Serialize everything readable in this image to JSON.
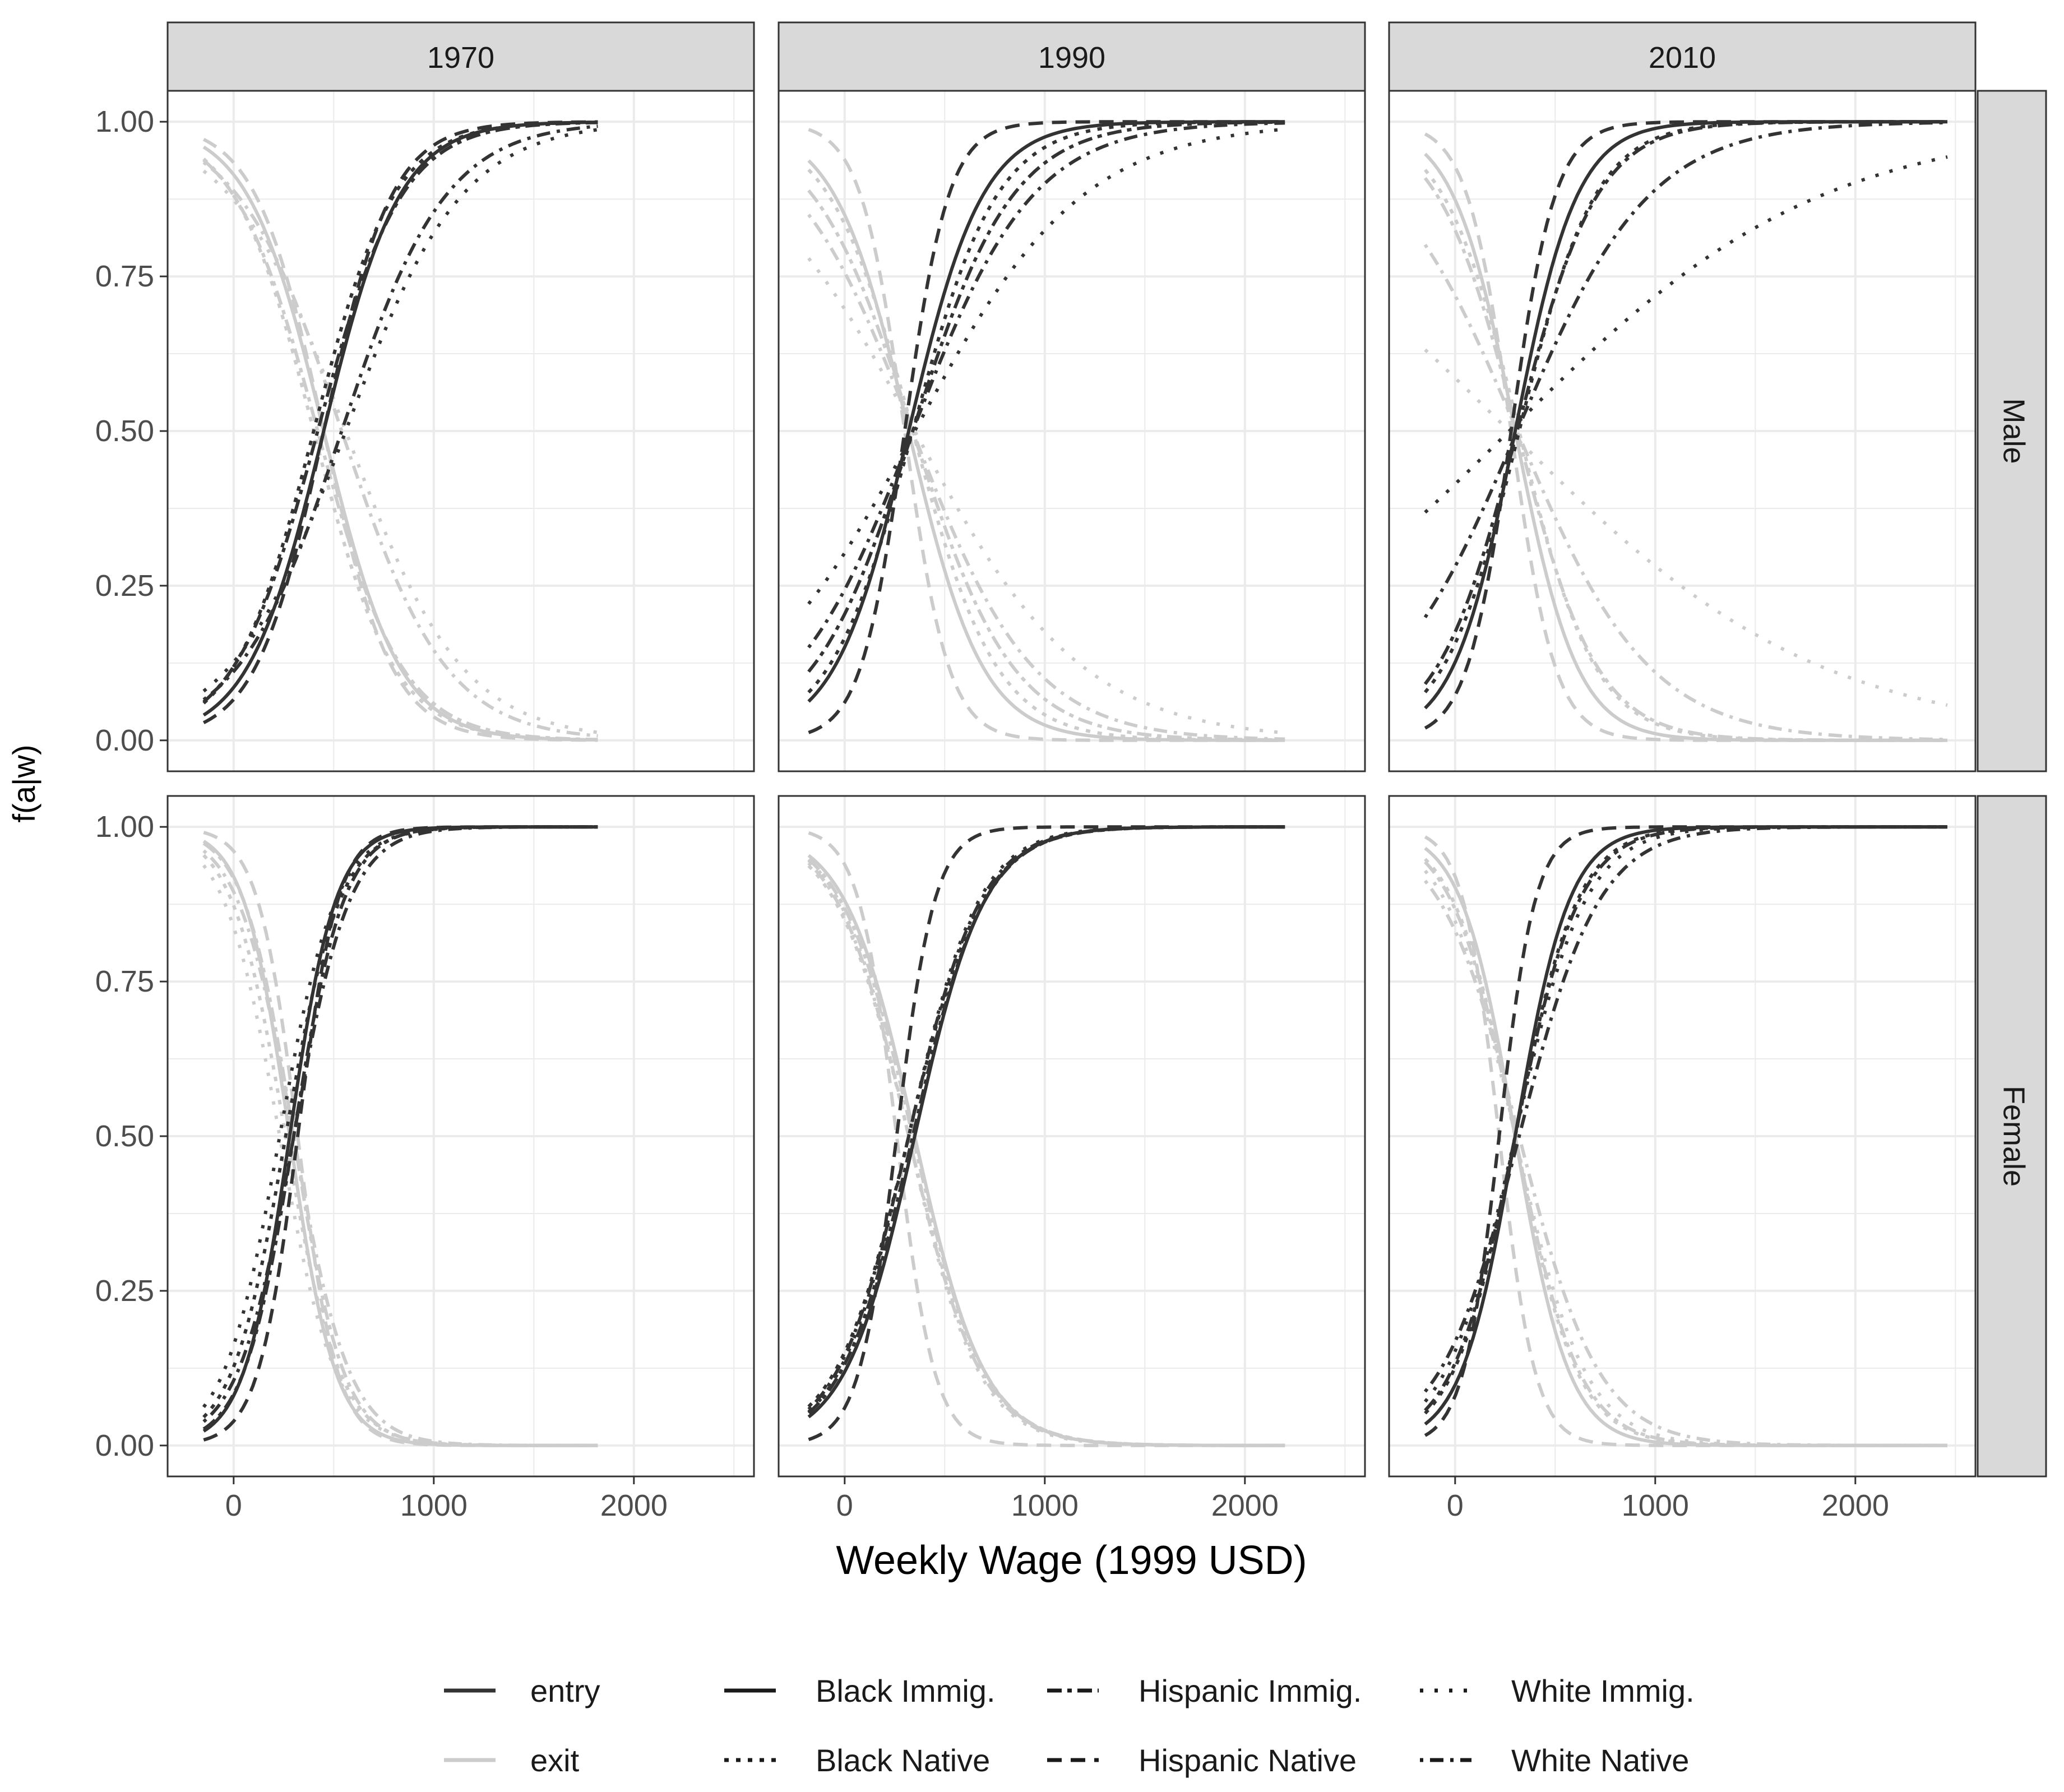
{
  "chart_data": {
    "type": "line",
    "layout": "facet_grid",
    "xlabel": "Weekly Wage (1999 USD)",
    "ylabel": "f(a|w)",
    "xlim": [
      -330,
      2600
    ],
    "ylim": [
      -0.05,
      1.05
    ],
    "x_ticks": [
      0,
      1000,
      2000
    ],
    "x_tick_labels": [
      "0",
      "1000",
      "2000"
    ],
    "y_ticks": [
      0,
      0.25,
      0.5,
      0.75,
      1.0
    ],
    "y_tick_labels": [
      "0.00",
      "0.25",
      "0.50",
      "0.75",
      "1.00"
    ],
    "x_minor": [
      -500,
      500,
      1500,
      2500
    ],
    "y_minor": [
      0.125,
      0.375,
      0.625,
      0.875
    ],
    "columns": [
      "1970",
      "1990",
      "2010"
    ],
    "rows": [
      "Male",
      "Female"
    ],
    "legend": {
      "position": "bottom",
      "color_entries": [
        {
          "label": "entry",
          "color": "#333333"
        },
        {
          "label": "exit",
          "color": "#cccccc"
        }
      ],
      "linetype_entries": [
        {
          "label": "Black Immig.",
          "dash": "solid"
        },
        {
          "label": "Black Native",
          "dash": "dotted"
        },
        {
          "label": "Hispanic Immig.",
          "dash": "dashdot"
        },
        {
          "label": "Hispanic Native",
          "dash": "dashed"
        },
        {
          "label": "White Immig.",
          "dash": "dotted-sparse"
        },
        {
          "label": "White Native",
          "dash": "dotdash"
        }
      ]
    },
    "colors": {
      "entry": "#333333",
      "exit": "#cccccc",
      "strip": "#d9d9d9",
      "grid": "#ebebeb",
      "frame": "#333333"
    },
    "x_extent_by_year": {
      "1970": [
        -150,
        1820
      ],
      "1990": [
        -180,
        2200
      ],
      "2010": [
        -150,
        2460
      ]
    },
    "series_model": "logistic: entry = 1/(1+exp(-(w-mid)/scale)); exit = 1 - entry",
    "panels": [
      {
        "column": "1970",
        "row": "Male",
        "series": [
          {
            "group": "Black Immig.",
            "mid": 450,
            "scale": 190
          },
          {
            "group": "Black Native",
            "mid": 400,
            "scale": 200
          },
          {
            "group": "Hispanic Immig.",
            "mid": 420,
            "scale": 210
          },
          {
            "group": "Hispanic Native",
            "mid": 450,
            "scale": 170
          },
          {
            "group": "White Immig.",
            "mid": 560,
            "scale": 290
          },
          {
            "group": "White Native",
            "mid": 540,
            "scale": 260
          }
        ]
      },
      {
        "column": "1990",
        "row": "Male",
        "series": [
          {
            "group": "Black Immig.",
            "mid": 320,
            "scale": 185
          },
          {
            "group": "Black Native",
            "mid": 340,
            "scale": 210
          },
          {
            "group": "Hispanic Immig.",
            "mid": 340,
            "scale": 250
          },
          {
            "group": "Hispanic Native",
            "mid": 300,
            "scale": 110
          },
          {
            "group": "White Immig.",
            "mid": 350,
            "scale": 420
          },
          {
            "group": "White Native",
            "mid": 340,
            "scale": 300
          }
        ]
      },
      {
        "column": "2010",
        "row": "Male",
        "series": [
          {
            "group": "Black Immig.",
            "mid": 300,
            "scale": 155
          },
          {
            "group": "Black Native",
            "mid": 320,
            "scale": 190
          },
          {
            "group": "Hispanic Immig.",
            "mid": 310,
            "scale": 200
          },
          {
            "group": "Hispanic Native",
            "mid": 280,
            "scale": 110
          },
          {
            "group": "White Immig.",
            "mid": 270,
            "scale": 780
          },
          {
            "group": "White Native",
            "mid": 310,
            "scale": 330
          }
        ]
      },
      {
        "column": "1970",
        "row": "Female",
        "series": [
          {
            "group": "Black Immig.",
            "mid": 280,
            "scale": 115
          },
          {
            "group": "Black Native",
            "mid": 260,
            "scale": 135
          },
          {
            "group": "Hispanic Immig.",
            "mid": 300,
            "scale": 125
          },
          {
            "group": "Hispanic Native",
            "mid": 320,
            "scale": 100
          },
          {
            "group": "White Immig.",
            "mid": 230,
            "scale": 140
          },
          {
            "group": "White Native",
            "mid": 300,
            "scale": 140
          }
        ]
      },
      {
        "column": "1990",
        "row": "Female",
        "series": [
          {
            "group": "Black Immig.",
            "mid": 350,
            "scale": 175
          },
          {
            "group": "Black Native",
            "mid": 320,
            "scale": 185
          },
          {
            "group": "Hispanic Immig.",
            "mid": 340,
            "scale": 180
          },
          {
            "group": "Hispanic Native",
            "mid": 260,
            "scale": 95
          },
          {
            "group": "White Immig.",
            "mid": 320,
            "scale": 175
          },
          {
            "group": "White Native",
            "mid": 320,
            "scale": 180
          }
        ]
      },
      {
        "column": "2010",
        "row": "Female",
        "series": [
          {
            "group": "Black Immig.",
            "mid": 300,
            "scale": 135
          },
          {
            "group": "Black Native",
            "mid": 300,
            "scale": 155
          },
          {
            "group": "Hispanic Immig.",
            "mid": 300,
            "scale": 160
          },
          {
            "group": "Hispanic Native",
            "mid": 220,
            "scale": 90
          },
          {
            "group": "White Immig.",
            "mid": 300,
            "scale": 175
          },
          {
            "group": "White Native",
            "mid": 320,
            "scale": 200
          }
        ]
      }
    ]
  }
}
